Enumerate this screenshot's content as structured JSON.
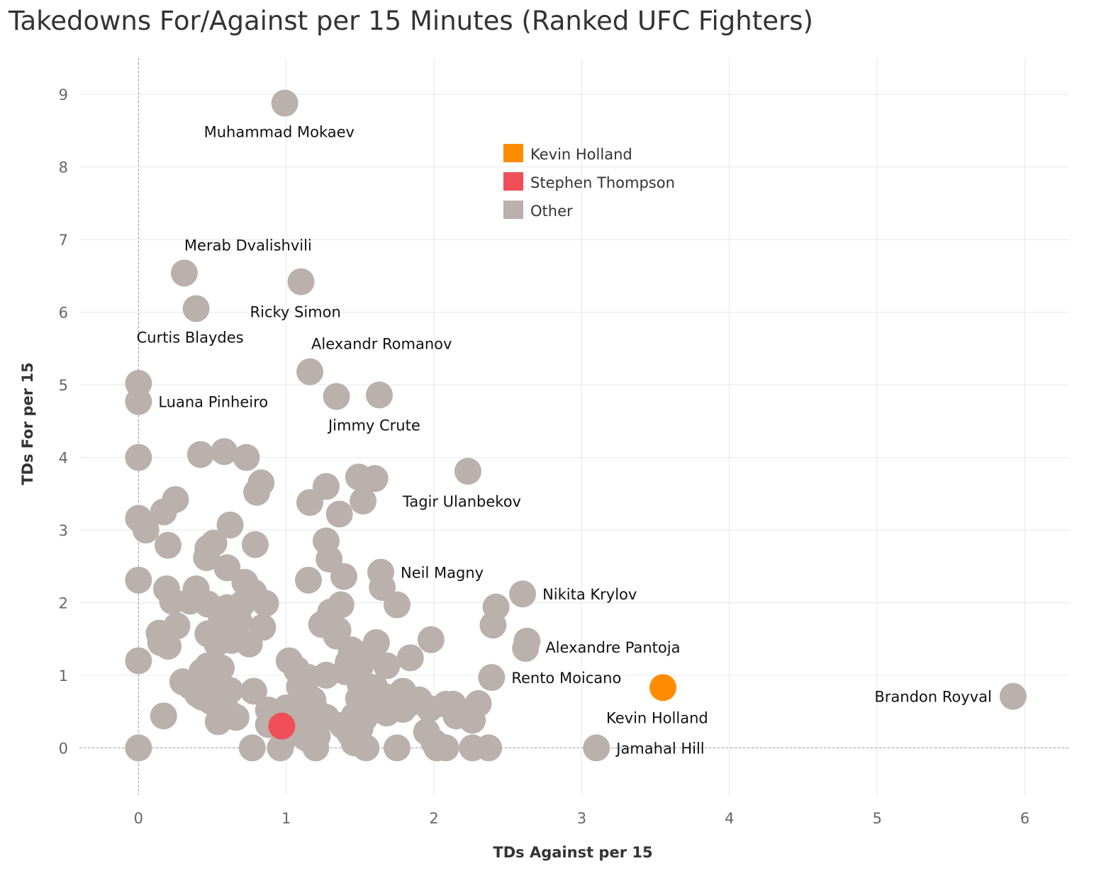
{
  "chart_data": {
    "type": "scatter",
    "title": "Takedowns For/Against per 15 Minutes (Ranked UFC Fighters)",
    "xlabel": "TDs Against per 15",
    "ylabel": "TDs For per 15",
    "xlim": [
      -0.4,
      6.3
    ],
    "ylim": [
      -0.65,
      9.5
    ],
    "x_ticks": [
      0,
      1,
      2,
      3,
      4,
      5,
      6
    ],
    "y_ticks": [
      0,
      1,
      2,
      3,
      4,
      5,
      6,
      7,
      8,
      9
    ],
    "grid": true,
    "reference_lines": {
      "x": 0,
      "y": 0
    },
    "legend": {
      "position": "top-center",
      "entries": [
        {
          "name": "Kevin Holland",
          "color": "#ff8c00"
        },
        {
          "name": "Stephen Thompson",
          "color": "#f04e58"
        },
        {
          "name": "Other",
          "color": "#bab0ac"
        }
      ]
    },
    "series": [
      {
        "name": "Other",
        "color": "#bab0ac",
        "points": [
          {
            "x": 0.99,
            "y": 8.88,
            "label": "Muhammad Mokaev",
            "label_pos": "below"
          },
          {
            "x": 0.31,
            "y": 6.54,
            "label": "Merab Dvalishvili",
            "label_pos": "above-right"
          },
          {
            "x": 1.1,
            "y": 6.42,
            "label": "Ricky Simon",
            "label_pos": "below"
          },
          {
            "x": 0.39,
            "y": 6.05,
            "label": "Curtis Blaydes",
            "label_pos": "below"
          },
          {
            "x": 1.16,
            "y": 5.18,
            "label": "Alexandr Romanov",
            "label_pos": "above-right"
          },
          {
            "x": 0.0,
            "y": 5.02
          },
          {
            "x": 0.0,
            "y": 4.77,
            "label": "Luana Pinheiro",
            "label_pos": "right"
          },
          {
            "x": 1.34,
            "y": 4.84
          },
          {
            "x": 1.63,
            "y": 4.86,
            "label": "Jimmy Crute",
            "label_pos": "below"
          },
          {
            "x": 0.0,
            "y": 4.0
          },
          {
            "x": 0.42,
            "y": 4.04
          },
          {
            "x": 0.58,
            "y": 4.08
          },
          {
            "x": 0.73,
            "y": 4.0
          },
          {
            "x": 2.23,
            "y": 3.81,
            "label": "Tagir Ulanbekov",
            "label_pos": "below-left"
          },
          {
            "x": 1.49,
            "y": 3.73
          },
          {
            "x": 1.6,
            "y": 3.71
          },
          {
            "x": 0.83,
            "y": 3.65
          },
          {
            "x": 0.8,
            "y": 3.52
          },
          {
            "x": 1.27,
            "y": 3.6
          },
          {
            "x": 1.16,
            "y": 3.38
          },
          {
            "x": 1.52,
            "y": 3.4
          },
          {
            "x": 1.36,
            "y": 3.22
          },
          {
            "x": 0.25,
            "y": 3.42
          },
          {
            "x": 0.17,
            "y": 3.25
          },
          {
            "x": 0.0,
            "y": 3.16
          },
          {
            "x": 0.05,
            "y": 3.0
          },
          {
            "x": 0.62,
            "y": 3.07
          },
          {
            "x": 0.2,
            "y": 2.79
          },
          {
            "x": 0.51,
            "y": 2.82
          },
          {
            "x": 0.47,
            "y": 2.75
          },
          {
            "x": 0.79,
            "y": 2.8
          },
          {
            "x": 1.27,
            "y": 2.85
          },
          {
            "x": 1.29,
            "y": 2.6
          },
          {
            "x": 0.46,
            "y": 2.62
          },
          {
            "x": 0.6,
            "y": 2.48
          },
          {
            "x": 1.39,
            "y": 2.36
          },
          {
            "x": 1.64,
            "y": 2.42,
            "label": "Neil Magny",
            "label_pos": "right"
          },
          {
            "x": 1.15,
            "y": 2.31
          },
          {
            "x": 0.0,
            "y": 2.31
          },
          {
            "x": 0.72,
            "y": 2.28
          },
          {
            "x": 1.65,
            "y": 2.21
          },
          {
            "x": 0.19,
            "y": 2.19
          },
          {
            "x": 0.39,
            "y": 2.19
          },
          {
            "x": 0.78,
            "y": 2.14
          },
          {
            "x": 2.6,
            "y": 2.12,
            "label": "Nikita Krylov",
            "label_pos": "right"
          },
          {
            "x": 0.23,
            "y": 2.02
          },
          {
            "x": 0.35,
            "y": 2.02
          },
          {
            "x": 0.47,
            "y": 1.98
          },
          {
            "x": 0.6,
            "y": 1.93
          },
          {
            "x": 0.7,
            "y": 1.98
          },
          {
            "x": 0.86,
            "y": 1.99
          },
          {
            "x": 1.37,
            "y": 1.97
          },
          {
            "x": 1.75,
            "y": 1.97
          },
          {
            "x": 2.42,
            "y": 1.94
          },
          {
            "x": 1.3,
            "y": 1.87
          },
          {
            "x": 0.56,
            "y": 1.8
          },
          {
            "x": 0.68,
            "y": 1.75
          },
          {
            "x": 1.24,
            "y": 1.7
          },
          {
            "x": 0.26,
            "y": 1.68
          },
          {
            "x": 0.84,
            "y": 1.66
          },
          {
            "x": 2.4,
            "y": 1.69
          },
          {
            "x": 1.35,
            "y": 1.62
          },
          {
            "x": 0.14,
            "y": 1.58
          },
          {
            "x": 0.47,
            "y": 1.57
          },
          {
            "x": 1.34,
            "y": 1.54
          },
          {
            "x": 0.56,
            "y": 1.52
          },
          {
            "x": 0.63,
            "y": 1.48
          },
          {
            "x": 1.98,
            "y": 1.49
          },
          {
            "x": 2.63,
            "y": 1.47,
            "label": "Alexandre Pantoja",
            "label_pos": "below-right"
          },
          {
            "x": 0.15,
            "y": 1.45
          },
          {
            "x": 0.53,
            "y": 1.44
          },
          {
            "x": 0.75,
            "y": 1.43
          },
          {
            "x": 1.61,
            "y": 1.45
          },
          {
            "x": 0.2,
            "y": 1.4
          },
          {
            "x": 2.62,
            "y": 1.37
          },
          {
            "x": 1.44,
            "y": 1.35
          },
          {
            "x": 1.55,
            "y": 1.3
          },
          {
            "x": 1.84,
            "y": 1.24
          },
          {
            "x": 0.0,
            "y": 1.2
          },
          {
            "x": 1.02,
            "y": 1.2
          },
          {
            "x": 1.42,
            "y": 1.18
          },
          {
            "x": 1.5,
            "y": 1.12
          },
          {
            "x": 1.68,
            "y": 1.13
          },
          {
            "x": 0.47,
            "y": 1.13
          },
          {
            "x": 0.56,
            "y": 1.1
          },
          {
            "x": 1.07,
            "y": 1.08
          },
          {
            "x": 1.4,
            "y": 1.05
          },
          {
            "x": 0.43,
            "y": 1.05
          },
          {
            "x": 1.27,
            "y": 1.0
          },
          {
            "x": 1.15,
            "y": 0.97
          },
          {
            "x": 1.09,
            "y": 1.02
          },
          {
            "x": 0.51,
            "y": 0.96
          },
          {
            "x": 2.39,
            "y": 0.97,
            "label": "Rento Moicano",
            "label_pos": "right"
          },
          {
            "x": 0.3,
            "y": 0.91
          },
          {
            "x": 1.11,
            "y": 0.88
          },
          {
            "x": 1.5,
            "y": 0.88
          },
          {
            "x": 1.55,
            "y": 0.85
          },
          {
            "x": 0.35,
            "y": 0.85
          },
          {
            "x": 1.09,
            "y": 0.84
          },
          {
            "x": 1.6,
            "y": 0.83
          },
          {
            "x": 0.62,
            "y": 0.79
          },
          {
            "x": 0.78,
            "y": 0.78
          },
          {
            "x": 1.79,
            "y": 0.78
          },
          {
            "x": 0.4,
            "y": 0.74
          },
          {
            "x": 1.52,
            "y": 0.74
          },
          {
            "x": 0.43,
            "y": 0.7
          },
          {
            "x": 1.68,
            "y": 0.7
          },
          {
            "x": 1.49,
            "y": 0.68
          },
          {
            "x": 1.18,
            "y": 0.66
          },
          {
            "x": 1.9,
            "y": 0.66
          },
          {
            "x": 0.49,
            "y": 0.64
          },
          {
            "x": 1.84,
            "y": 0.62
          },
          {
            "x": 2.08,
            "y": 0.6
          },
          {
            "x": 2.13,
            "y": 0.6
          },
          {
            "x": 2.3,
            "y": 0.61
          },
          {
            "x": 1.72,
            "y": 0.56
          },
          {
            "x": 1.0,
            "y": 0.55
          },
          {
            "x": 1.19,
            "y": 0.55
          },
          {
            "x": 1.97,
            "y": 0.54
          },
          {
            "x": 1.79,
            "y": 0.53
          },
          {
            "x": 0.88,
            "y": 0.52
          },
          {
            "x": 1.05,
            "y": 0.5
          },
          {
            "x": 1.57,
            "y": 0.5
          },
          {
            "x": 1.68,
            "y": 0.48
          },
          {
            "x": 0.62,
            "y": 0.47
          },
          {
            "x": 0.17,
            "y": 0.44
          },
          {
            "x": 1.46,
            "y": 0.44
          },
          {
            "x": 2.15,
            "y": 0.44
          },
          {
            "x": 0.66,
            "y": 0.42
          },
          {
            "x": 1.27,
            "y": 0.42
          },
          {
            "x": 1.53,
            "y": 0.41
          },
          {
            "x": 2.26,
            "y": 0.38
          },
          {
            "x": 0.54,
            "y": 0.36
          },
          {
            "x": 1.11,
            "y": 0.34
          },
          {
            "x": 0.88,
            "y": 0.32
          },
          {
            "x": 1.38,
            "y": 0.31
          },
          {
            "x": 1.44,
            "y": 0.29
          },
          {
            "x": 1.08,
            "y": 0.28
          },
          {
            "x": 1.5,
            "y": 0.27
          },
          {
            "x": 1.18,
            "y": 0.26
          },
          {
            "x": 1.95,
            "y": 0.22
          },
          {
            "x": 1.04,
            "y": 0.2
          },
          {
            "x": 1.43,
            "y": 0.2
          },
          {
            "x": 1.21,
            "y": 0.16
          },
          {
            "x": 1.14,
            "y": 0.13
          },
          {
            "x": 1.18,
            "y": 0.09
          },
          {
            "x": 1.46,
            "y": 0.07
          },
          {
            "x": 2.0,
            "y": 0.08
          },
          {
            "x": 0.0,
            "y": 0.0
          },
          {
            "x": 0.77,
            "y": 0.0
          },
          {
            "x": 0.96,
            "y": 0.0
          },
          {
            "x": 1.2,
            "y": 0.0
          },
          {
            "x": 1.54,
            "y": 0.0
          },
          {
            "x": 1.75,
            "y": 0.0
          },
          {
            "x": 2.02,
            "y": 0.0
          },
          {
            "x": 2.08,
            "y": 0.0
          },
          {
            "x": 2.26,
            "y": 0.0
          },
          {
            "x": 2.37,
            "y": 0.0
          },
          {
            "x": 3.1,
            "y": 0.0,
            "label": "Jamahal Hill",
            "label_pos": "right"
          },
          {
            "x": 5.92,
            "y": 0.71,
            "label": "Brandon Royval",
            "label_pos": "left"
          }
        ]
      },
      {
        "name": "Stephen Thompson",
        "color": "#f04e58",
        "points": [
          {
            "x": 0.97,
            "y": 0.3
          }
        ]
      },
      {
        "name": "Kevin Holland",
        "color": "#ff8c00",
        "points": [
          {
            "x": 3.55,
            "y": 0.83,
            "label": "Kevin Holland",
            "label_pos": "below-left"
          }
        ]
      }
    ]
  }
}
